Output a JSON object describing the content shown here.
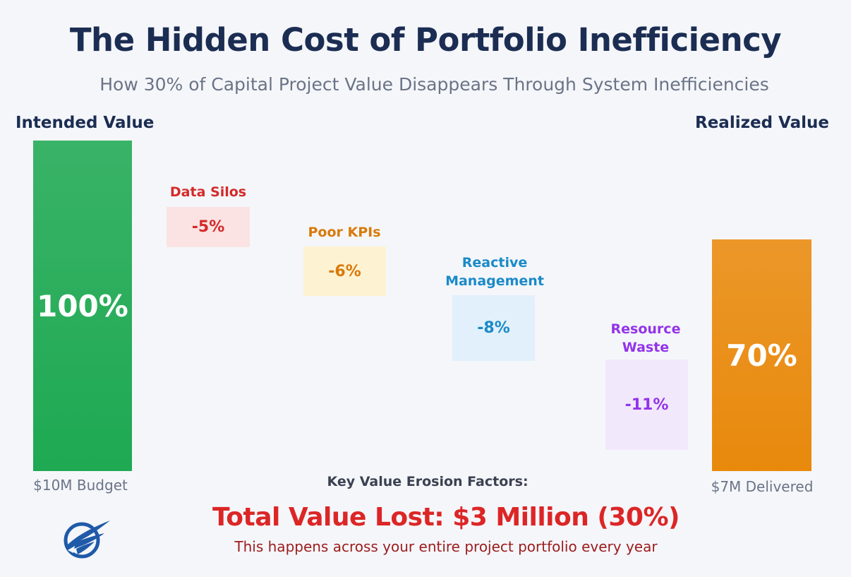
{
  "header": {
    "title": "The Hidden Cost of Portfolio Inefficiency",
    "subtitle": "How 30% of Capital Project Value Disappears Through System Inefficiencies"
  },
  "chart_data": {
    "type": "bar",
    "subtype": "waterfall",
    "start": {
      "label": "Intended Value",
      "value": 100,
      "value_label": "100%",
      "caption": "$10M Budget",
      "color": "#1ea952"
    },
    "end": {
      "label": "Realized Value",
      "value": 70,
      "value_label": "70%",
      "caption": "$7M Delivered",
      "color": "#e8890c"
    },
    "factors": [
      {
        "name": "Data Silos",
        "value": -5,
        "value_label": "-5%",
        "text_color": "#d42a2a",
        "box_color": "#fbe3e3"
      },
      {
        "name": "Poor KPIs",
        "value": -6,
        "value_label": "-6%",
        "text_color": "#d97a0b",
        "box_color": "#fdf3d3"
      },
      {
        "name": "Reactive Management",
        "value": -8,
        "value_label": "-8%",
        "text_color": "#1a8ac8",
        "box_color": "#e1f0fb"
      },
      {
        "name": "Resource Waste",
        "value": -11,
        "value_label": "-11%",
        "text_color": "#9333ea",
        "box_color": "#f2e8fc"
      }
    ],
    "factors_heading": "Key Value Erosion Factors:"
  },
  "footer": {
    "total": "Total Value Lost: $3 Million (30%)",
    "note": "This happens across your entire project portfolio every year"
  },
  "logo": {
    "icon": "eagle-logo-icon",
    "color": "#1f5aa8"
  }
}
